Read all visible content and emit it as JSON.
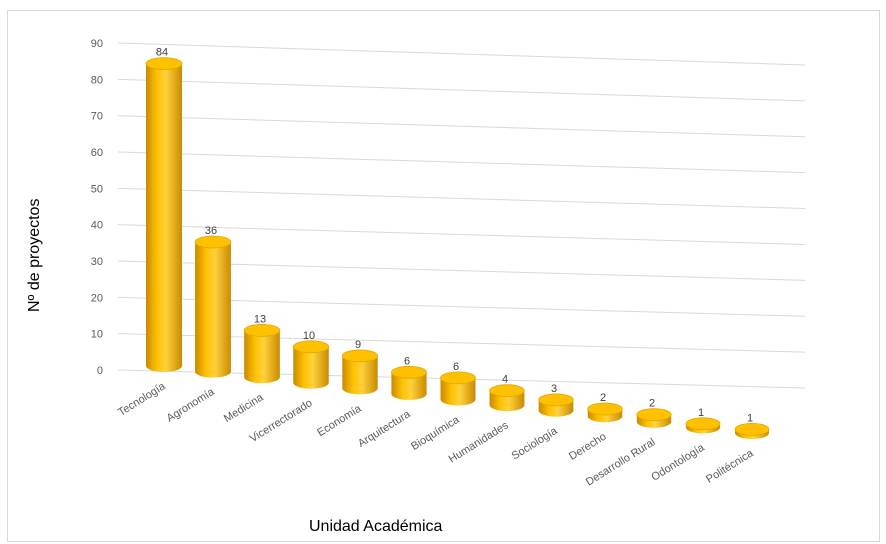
{
  "chart_data": {
    "type": "bar",
    "variant": "3d-cylinder",
    "title": "",
    "xlabel": "Unidad Académica",
    "ylabel": "Nº de proyectos",
    "ylim": [
      0,
      90
    ],
    "yticks": [
      0,
      10,
      20,
      30,
      40,
      50,
      60,
      70,
      80,
      90
    ],
    "categories": [
      "Tecnología",
      "Agronomía",
      "Medicina",
      "Vicerrectorado",
      "Economía",
      "Arquitectura",
      "Bioquímica",
      "Humanidades",
      "Sociología",
      "Derecho",
      "Desarrollo Rural",
      "Odontología",
      "Politécnica"
    ],
    "values": [
      84,
      36,
      13,
      10,
      9,
      6,
      6,
      4,
      3,
      2,
      2,
      1,
      1
    ],
    "data_labels": [
      "84",
      "36",
      "13",
      "10",
      "9",
      "6",
      "6",
      "4",
      "3",
      "2",
      "2",
      "1",
      "1"
    ],
    "grid": true,
    "bar_color": "#FFC000"
  }
}
